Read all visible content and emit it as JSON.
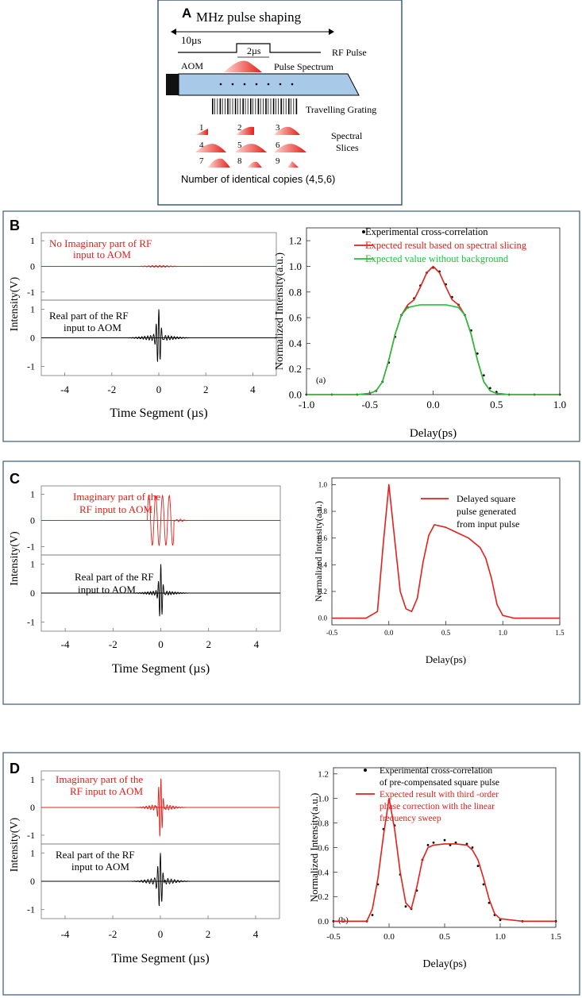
{
  "panel_a": {
    "letter": "A",
    "title": "MHz pulse shaping",
    "duration_long": "10µs",
    "duration_short": "2µs",
    "rf_pulse": "RF Pulse",
    "aom": "AOM",
    "pulse_spectrum": "Pulse Spectrum",
    "travelling_grating": "Travelling Grating",
    "spectral_slices": [
      "Spectral",
      "Slices"
    ],
    "slice_numbers": [
      "1",
      "2",
      "3",
      "4",
      "5",
      "6",
      "7",
      "8",
      "9"
    ],
    "copies_caption": "Number of identical copies (4,5,6)",
    "colors": {
      "accent": "#e3201b",
      "aom_fill": "#a9c9e8",
      "frame": "#3a5a7a"
    }
  },
  "panel_b": {
    "letter": "B",
    "rf_imag_label": [
      "No Imaginary part of RF",
      "input to AOM"
    ],
    "rf_real_label": [
      "Real part of the RF",
      "input to AOM"
    ]
  },
  "panel_c": {
    "letter": "C",
    "rf_imag_label": [
      "Imaginary part of the",
      "RF input to AOM"
    ],
    "rf_real_label": [
      "Real part of the RF",
      "input to AOM"
    ]
  },
  "panel_d": {
    "letter": "D",
    "rf_imag_label": [
      "Imaginary part of the",
      "RF input to AOM"
    ],
    "rf_real_label": [
      "Real part of the RF",
      "input to AOM"
    ]
  },
  "rf_axes": {
    "ylabel": "Intensity(V)",
    "xlabel": "Time Segment (µs)",
    "x_ticks": [
      "-4",
      "-2",
      "0",
      "2",
      "4"
    ],
    "y_ticks": [
      "1",
      "0",
      "-1"
    ]
  },
  "chart_data": [
    {
      "type": "line",
      "panel": "B",
      "title": "",
      "panel_tag": "(a)",
      "xlabel": "Delay(ps)",
      "ylabel": "Normalized Intensity(a.u.)",
      "xlim": [
        -1.0,
        1.0
      ],
      "ylim": [
        0.0,
        1.3
      ],
      "x_ticks": [
        "-1.0",
        "-0.5",
        "0.0",
        "0.5",
        "1.0"
      ],
      "y_ticks": [
        "0.0",
        "0.2",
        "0.4",
        "0.6",
        "0.8",
        "1.0",
        "1.2"
      ],
      "legend": [
        "Experimental cross-correlation",
        "Expected result based on spectral slicing",
        "Expected value without background"
      ],
      "legend_colors": [
        "#000000",
        "#e3201b",
        "#1ec23a"
      ],
      "series": [
        {
          "name": "Experimental cross-correlation",
          "style": "dots",
          "x": [
            -1.0,
            -0.8,
            -0.6,
            -0.5,
            -0.45,
            -0.4,
            -0.35,
            -0.3,
            -0.25,
            -0.2,
            -0.15,
            -0.1,
            -0.05,
            0.0,
            0.05,
            0.1,
            0.15,
            0.2,
            0.25,
            0.3,
            0.35,
            0.4,
            0.45,
            0.5,
            0.6,
            0.8,
            1.0
          ],
          "y": [
            0.0,
            0.0,
            0.0,
            0.01,
            0.03,
            0.1,
            0.25,
            0.45,
            0.62,
            0.68,
            0.75,
            0.85,
            0.95,
            0.99,
            0.96,
            0.86,
            0.76,
            0.7,
            0.62,
            0.5,
            0.32,
            0.15,
            0.05,
            0.02,
            0.0,
            0.0,
            0.0
          ]
        },
        {
          "name": "Expected result based on spectral slicing",
          "style": "line",
          "x": [
            -1.0,
            -0.8,
            -0.6,
            -0.5,
            -0.45,
            -0.4,
            -0.35,
            -0.3,
            -0.25,
            -0.2,
            -0.15,
            -0.1,
            -0.05,
            0.0,
            0.05,
            0.1,
            0.15,
            0.2,
            0.25,
            0.3,
            0.35,
            0.4,
            0.45,
            0.5,
            0.6,
            0.8,
            1.0
          ],
          "y": [
            0.0,
            0.0,
            0.0,
            0.01,
            0.03,
            0.1,
            0.27,
            0.47,
            0.62,
            0.7,
            0.74,
            0.84,
            0.95,
            1.0,
            0.95,
            0.84,
            0.74,
            0.7,
            0.62,
            0.47,
            0.27,
            0.1,
            0.03,
            0.01,
            0.0,
            0.0,
            0.0
          ]
        },
        {
          "name": "Expected value without background",
          "style": "line",
          "x": [
            -1.0,
            -0.8,
            -0.6,
            -0.5,
            -0.45,
            -0.4,
            -0.35,
            -0.3,
            -0.25,
            -0.2,
            -0.1,
            0.0,
            0.1,
            0.2,
            0.25,
            0.3,
            0.35,
            0.4,
            0.45,
            0.5,
            0.6,
            0.8,
            1.0
          ],
          "y": [
            0.0,
            0.0,
            0.0,
            0.01,
            0.03,
            0.1,
            0.27,
            0.47,
            0.62,
            0.68,
            0.7,
            0.7,
            0.7,
            0.68,
            0.62,
            0.47,
            0.27,
            0.1,
            0.03,
            0.01,
            0.0,
            0.0,
            0.0
          ]
        }
      ]
    },
    {
      "type": "line",
      "panel": "C",
      "title": "",
      "xlabel": "Delay(ps)",
      "ylabel": "Normalized Intensity(a.u.)",
      "xlim": [
        -0.5,
        1.5
      ],
      "ylim": [
        -0.05,
        1.05
      ],
      "x_ticks": [
        "-0.5",
        "0.0",
        "0.5",
        "1.0",
        "1.5"
      ],
      "y_ticks": [
        "0.0",
        "0.2",
        "0.4",
        "0.6",
        "0.8",
        "1.0"
      ],
      "legend": [
        "Delayed square pulse generated from input pulse"
      ],
      "legend_lines": [
        "Delayed square",
        "pulse generated",
        "from input pulse"
      ],
      "legend_colors": [
        "#e3201b"
      ],
      "series": [
        {
          "name": "Delayed square pulse generated from input pulse",
          "style": "line",
          "x": [
            -0.5,
            -0.2,
            -0.1,
            -0.05,
            0.0,
            0.05,
            0.1,
            0.15,
            0.2,
            0.25,
            0.3,
            0.35,
            0.4,
            0.5,
            0.6,
            0.7,
            0.8,
            0.85,
            0.9,
            0.95,
            1.0,
            1.1,
            1.5
          ],
          "y": [
            0.0,
            0.0,
            0.05,
            0.55,
            1.0,
            0.6,
            0.2,
            0.07,
            0.05,
            0.15,
            0.42,
            0.62,
            0.7,
            0.68,
            0.64,
            0.6,
            0.53,
            0.45,
            0.3,
            0.1,
            0.02,
            0.0,
            0.0
          ]
        }
      ]
    },
    {
      "type": "line",
      "panel": "D",
      "title": "",
      "panel_tag": "(b)",
      "xlabel": "Delay(ps)",
      "ylabel": "Normalized Intensity(a.u.)",
      "xlim": [
        -0.5,
        1.5
      ],
      "ylim": [
        -0.05,
        1.25
      ],
      "x_ticks": [
        "-0.5",
        "0.0",
        "0.5",
        "1.0",
        "1.5"
      ],
      "y_ticks": [
        "0.0",
        "0.2",
        "0.4",
        "0.6",
        "0.8",
        "1.0",
        "1.2"
      ],
      "legend": [
        "Experimental cross-correlation of pre-compensated square pulse",
        "Expected result with third -order phase correction with the linear frequency sweep"
      ],
      "legend_lines": [
        [
          "Experimental cross-correlation",
          "of pre-compensated square pulse"
        ],
        [
          "Expected result with third -order",
          "phase correction with the linear",
          "frequency sweep"
        ]
      ],
      "legend_colors": [
        "#000000",
        "#e3201b"
      ],
      "series": [
        {
          "name": "Experimental cross-correlation",
          "style": "dots",
          "x": [
            -0.5,
            -0.2,
            -0.15,
            -0.1,
            -0.05,
            0.0,
            0.05,
            0.1,
            0.15,
            0.2,
            0.25,
            0.3,
            0.35,
            0.4,
            0.5,
            0.55,
            0.6,
            0.7,
            0.75,
            0.8,
            0.85,
            0.9,
            0.95,
            1.0,
            1.2,
            1.5
          ],
          "y": [
            0.0,
            0.0,
            0.05,
            0.3,
            0.75,
            0.98,
            0.78,
            0.38,
            0.12,
            0.1,
            0.25,
            0.5,
            0.62,
            0.64,
            0.66,
            0.62,
            0.64,
            0.63,
            0.6,
            0.45,
            0.3,
            0.15,
            0.05,
            0.01,
            0.0,
            0.0
          ]
        },
        {
          "name": "Expected result with third-order phase correction",
          "style": "line",
          "x": [
            -0.5,
            -0.2,
            -0.15,
            -0.1,
            -0.05,
            0.0,
            0.05,
            0.1,
            0.15,
            0.2,
            0.25,
            0.3,
            0.35,
            0.4,
            0.5,
            0.6,
            0.7,
            0.75,
            0.8,
            0.85,
            0.9,
            0.95,
            1.0,
            1.2,
            1.5
          ],
          "y": [
            0.0,
            0.0,
            0.1,
            0.35,
            0.7,
            1.0,
            0.75,
            0.4,
            0.15,
            0.1,
            0.28,
            0.5,
            0.6,
            0.62,
            0.63,
            0.63,
            0.62,
            0.58,
            0.5,
            0.35,
            0.18,
            0.06,
            0.02,
            0.0,
            0.0
          ]
        }
      ]
    }
  ]
}
